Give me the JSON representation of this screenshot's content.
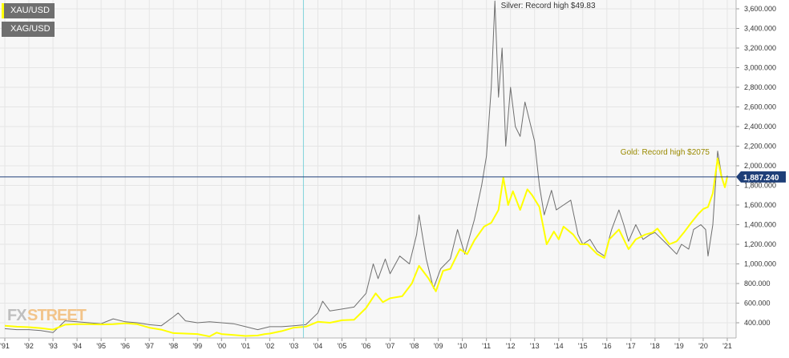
{
  "legend": [
    {
      "label": "XAU/USD",
      "color": "#ffff00"
    },
    {
      "label": "XAG/USD",
      "color": "#6f6f6f"
    }
  ],
  "logo": {
    "part1": "FX",
    "part2": "STREET"
  },
  "current_price": {
    "label": "1,887.240",
    "value": 1887.24
  },
  "colors": {
    "gold": "#ffff00",
    "silver": "#6f6f6f",
    "crosshair_h": "#1f3f78",
    "crosshair_v": "#7fd3dc",
    "grid": "#e5e5e5",
    "plot_bg": "#f7f7f7"
  },
  "chart_data": {
    "type": "line",
    "title": "",
    "xlabel": "",
    "ylabel": "",
    "ylim": [
      300,
      3700
    ],
    "yticks": [
      400,
      600,
      800,
      1000,
      1200,
      1400,
      1600,
      1800,
      2000,
      2200,
      2400,
      2600,
      2800,
      3000,
      3200,
      3400,
      3600
    ],
    "ytick_labels": [
      "400.000",
      "600.000",
      "800.000",
      "1,000.000",
      "1,200.000",
      "1,400.000",
      "1,600.000",
      "1,800.000",
      "2,000.000",
      "2,200.000",
      "2,400.000",
      "2,600.000",
      "2,800.000",
      "3,000.000",
      "3,200.000",
      "3,400.000",
      "3,600.000"
    ],
    "xlim": [
      1991.0,
      2021.2
    ],
    "xticks": [
      1991,
      1992,
      1993,
      1994,
      1995,
      1996,
      1997,
      1998,
      1999,
      2000,
      2001,
      2002,
      2003,
      2004,
      2005,
      2006,
      2007,
      2008,
      2009,
      2010,
      2011,
      2012,
      2013,
      2014,
      2015,
      2016,
      2017,
      2018,
      2019,
      2020,
      2021
    ],
    "xtick_labels": [
      "'91",
      "'92",
      "'93",
      "'94",
      "'95",
      "'96",
      "'97",
      "'98",
      "'99",
      "'00",
      "'01",
      "'02",
      "'03",
      "'04",
      "'05",
      "'06",
      "'07",
      "'08",
      "'09",
      "'10",
      "'11",
      "'12",
      "'13",
      "'14",
      "'15",
      "'16",
      "'17",
      "'18",
      "'19",
      "'20",
      "'21"
    ],
    "crosshair": {
      "x": 2003.4,
      "y": 1887.24
    },
    "annotations": [
      {
        "text": "Silver: Record high $49.83",
        "x": 2011.4,
        "y": 3680,
        "color": "#333333"
      },
      {
        "text": "Gold: Record high $2075",
        "x": 2020.6,
        "y": 2075,
        "color": "#9a8a00"
      }
    ],
    "series": [
      {
        "name": "XAU/USD",
        "color": "#ffff00",
        "points": [
          [
            1991.0,
            370
          ],
          [
            1991.5,
            360
          ],
          [
            1992.0,
            355
          ],
          [
            1992.5,
            345
          ],
          [
            1993.0,
            330
          ],
          [
            1993.5,
            380
          ],
          [
            1994.0,
            385
          ],
          [
            1994.5,
            385
          ],
          [
            1995.0,
            383
          ],
          [
            1995.5,
            385
          ],
          [
            1996.0,
            395
          ],
          [
            1996.5,
            385
          ],
          [
            1997.0,
            350
          ],
          [
            1997.5,
            330
          ],
          [
            1998.0,
            295
          ],
          [
            1998.5,
            290
          ],
          [
            1999.0,
            285
          ],
          [
            1999.5,
            260
          ],
          [
            1999.8,
            300
          ],
          [
            2000.0,
            285
          ],
          [
            2000.5,
            275
          ],
          [
            2001.0,
            265
          ],
          [
            2001.5,
            270
          ],
          [
            2001.8,
            285
          ],
          [
            2002.0,
            290
          ],
          [
            2002.5,
            315
          ],
          [
            2003.0,
            350
          ],
          [
            2003.5,
            360
          ],
          [
            2004.0,
            410
          ],
          [
            2004.5,
            400
          ],
          [
            2005.0,
            425
          ],
          [
            2005.5,
            430
          ],
          [
            2006.0,
            550
          ],
          [
            2006.4,
            700
          ],
          [
            2006.7,
            610
          ],
          [
            2007.0,
            650
          ],
          [
            2007.5,
            670
          ],
          [
            2007.9,
            800
          ],
          [
            2008.2,
            980
          ],
          [
            2008.6,
            850
          ],
          [
            2008.9,
            720
          ],
          [
            2009.2,
            930
          ],
          [
            2009.5,
            950
          ],
          [
            2009.9,
            1150
          ],
          [
            2010.2,
            1100
          ],
          [
            2010.5,
            1240
          ],
          [
            2010.9,
            1380
          ],
          [
            2011.2,
            1420
          ],
          [
            2011.5,
            1550
          ],
          [
            2011.7,
            1880
          ],
          [
            2011.9,
            1600
          ],
          [
            2012.1,
            1740
          ],
          [
            2012.4,
            1550
          ],
          [
            2012.7,
            1760
          ],
          [
            2012.9,
            1700
          ],
          [
            2013.2,
            1580
          ],
          [
            2013.5,
            1200
          ],
          [
            2013.8,
            1330
          ],
          [
            2014.0,
            1250
          ],
          [
            2014.2,
            1380
          ],
          [
            2014.6,
            1300
          ],
          [
            2014.9,
            1200
          ],
          [
            2015.2,
            1200
          ],
          [
            2015.6,
            1100
          ],
          [
            2015.9,
            1060
          ],
          [
            2016.1,
            1250
          ],
          [
            2016.5,
            1350
          ],
          [
            2016.9,
            1150
          ],
          [
            2017.2,
            1250
          ],
          [
            2017.6,
            1300
          ],
          [
            2017.9,
            1320
          ],
          [
            2018.1,
            1360
          ],
          [
            2018.6,
            1200
          ],
          [
            2018.9,
            1230
          ],
          [
            2019.2,
            1320
          ],
          [
            2019.5,
            1420
          ],
          [
            2019.8,
            1510
          ],
          [
            2020.0,
            1560
          ],
          [
            2020.2,
            1580
          ],
          [
            2020.4,
            1720
          ],
          [
            2020.6,
            2075
          ],
          [
            2020.75,
            1900
          ],
          [
            2020.9,
            1780
          ],
          [
            2021.0,
            1887
          ]
        ]
      },
      {
        "name": "XAG/USD",
        "color": "#6f6f6f",
        "points": [
          [
            1991.0,
            340
          ],
          [
            1991.5,
            330
          ],
          [
            1992.0,
            330
          ],
          [
            1992.5,
            320
          ],
          [
            1993.0,
            300
          ],
          [
            1993.5,
            420
          ],
          [
            1994.0,
            410
          ],
          [
            1994.5,
            400
          ],
          [
            1995.0,
            390
          ],
          [
            1995.5,
            440
          ],
          [
            1996.0,
            410
          ],
          [
            1996.5,
            400
          ],
          [
            1997.0,
            380
          ],
          [
            1997.5,
            370
          ],
          [
            1998.0,
            460
          ],
          [
            1998.2,
            500
          ],
          [
            1998.5,
            420
          ],
          [
            1999.0,
            400
          ],
          [
            1999.5,
            410
          ],
          [
            2000.0,
            400
          ],
          [
            2000.5,
            390
          ],
          [
            2001.0,
            360
          ],
          [
            2001.5,
            330
          ],
          [
            2002.0,
            360
          ],
          [
            2002.5,
            360
          ],
          [
            2003.0,
            370
          ],
          [
            2003.5,
            380
          ],
          [
            2004.0,
            500
          ],
          [
            2004.2,
            620
          ],
          [
            2004.5,
            520
          ],
          [
            2005.0,
            540
          ],
          [
            2005.5,
            560
          ],
          [
            2006.0,
            700
          ],
          [
            2006.3,
            1000
          ],
          [
            2006.5,
            850
          ],
          [
            2006.8,
            1050
          ],
          [
            2007.0,
            900
          ],
          [
            2007.4,
            1080
          ],
          [
            2007.8,
            1000
          ],
          [
            2008.1,
            1300
          ],
          [
            2008.2,
            1500
          ],
          [
            2008.5,
            1050
          ],
          [
            2008.8,
            750
          ],
          [
            2009.1,
            950
          ],
          [
            2009.5,
            1050
          ],
          [
            2009.8,
            1350
          ],
          [
            2010.1,
            1100
          ],
          [
            2010.5,
            1450
          ],
          [
            2010.8,
            1800
          ],
          [
            2011.0,
            2100
          ],
          [
            2011.2,
            2800
          ],
          [
            2011.35,
            3680
          ],
          [
            2011.5,
            2700
          ],
          [
            2011.65,
            3200
          ],
          [
            2011.8,
            2200
          ],
          [
            2012.0,
            2800
          ],
          [
            2012.2,
            2400
          ],
          [
            2012.4,
            2300
          ],
          [
            2012.6,
            2650
          ],
          [
            2012.8,
            2450
          ],
          [
            2013.0,
            2250
          ],
          [
            2013.2,
            1800
          ],
          [
            2013.4,
            1500
          ],
          [
            2013.7,
            1750
          ],
          [
            2013.9,
            1550
          ],
          [
            2014.2,
            1600
          ],
          [
            2014.5,
            1650
          ],
          [
            2014.8,
            1300
          ],
          [
            2015.0,
            1200
          ],
          [
            2015.3,
            1250
          ],
          [
            2015.6,
            1130
          ],
          [
            2015.9,
            1080
          ],
          [
            2016.2,
            1350
          ],
          [
            2016.5,
            1550
          ],
          [
            2016.7,
            1400
          ],
          [
            2016.9,
            1230
          ],
          [
            2017.2,
            1400
          ],
          [
            2017.5,
            1250
          ],
          [
            2017.8,
            1300
          ],
          [
            2018.0,
            1320
          ],
          [
            2018.5,
            1200
          ],
          [
            2018.9,
            1100
          ],
          [
            2019.1,
            1200
          ],
          [
            2019.4,
            1150
          ],
          [
            2019.6,
            1350
          ],
          [
            2019.9,
            1400
          ],
          [
            2020.1,
            1350
          ],
          [
            2020.2,
            1080
          ],
          [
            2020.4,
            1400
          ],
          [
            2020.6,
            2150
          ],
          [
            2020.8,
            1850
          ],
          [
            2020.9,
            1780
          ],
          [
            2021.0,
            1900
          ]
        ]
      }
    ]
  }
}
